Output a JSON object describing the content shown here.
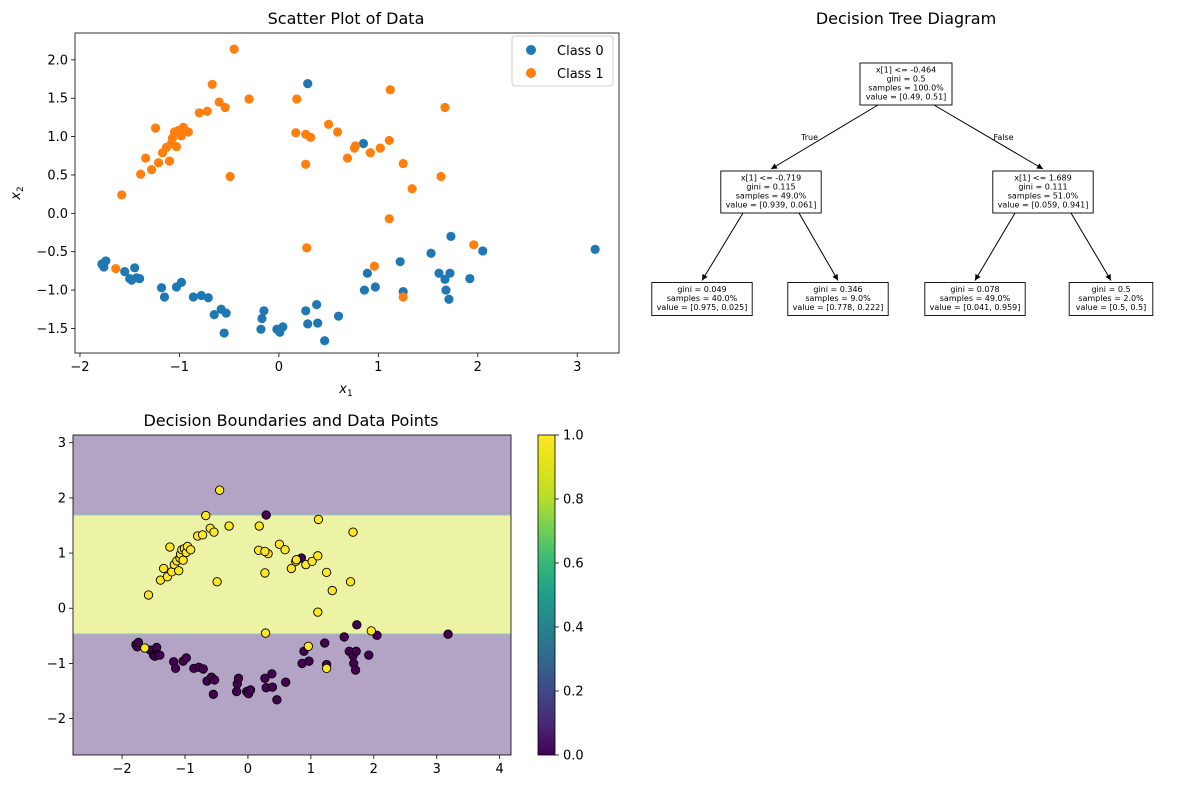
{
  "colors": {
    "class0": "#1f77b4",
    "class1": "#ff7f0e",
    "region0": "#b3a4c6",
    "region1": "#edf3a5",
    "edge_dark": "#440154",
    "edge_light": "#fde725"
  },
  "chart_data": [
    {
      "type": "scatter",
      "title": "Scatter Plot of Data",
      "xlabel": "x",
      "xlabel_sub": "1",
      "ylabel": "x",
      "ylabel_sub": "2",
      "xlim": [
        -2.05,
        3.42
      ],
      "ylim": [
        -1.82,
        2.35
      ],
      "xticks": [
        -2,
        -1,
        0,
        1,
        2,
        3
      ],
      "xtick_labels": [
        "−2",
        "−1",
        "0",
        "1",
        "2",
        "3"
      ],
      "yticks": [
        -1.5,
        -1.0,
        -0.5,
        0.0,
        0.5,
        1.0,
        1.5,
        2.0
      ],
      "ytick_labels": [
        "−1.5",
        "−1.0",
        "−0.5",
        "0.0",
        "0.5",
        "1.0",
        "1.5",
        "2.0"
      ],
      "grid": false,
      "legend_position": "top-right",
      "series": [
        {
          "name": "Class 0",
          "x": [
            -1.78,
            -1.76,
            -1.74,
            -1.55,
            -1.5,
            -1.48,
            -1.45,
            -1.43,
            -1.4,
            -1.18,
            -1.15,
            -1.03,
            -0.98,
            -0.86,
            -0.78,
            -0.71,
            -0.65,
            -0.58,
            -0.55,
            -0.53,
            -0.18,
            -0.17,
            -0.15,
            -0.02,
            0.01,
            0.04,
            0.27,
            0.29,
            0.38,
            0.39,
            0.46,
            0.6,
            0.86,
            0.89,
            0.97,
            1.22,
            1.25,
            1.53,
            1.61,
            1.67,
            1.68,
            1.71,
            1.72,
            1.73,
            1.92,
            2.05,
            3.18,
            0.29,
            0.85
          ],
          "y": [
            -0.66,
            -0.7,
            -0.62,
            -0.76,
            -0.85,
            -0.87,
            -0.71,
            -0.84,
            -0.85,
            -0.97,
            -1.09,
            -0.96,
            -0.9,
            -1.09,
            -1.07,
            -1.1,
            -1.32,
            -1.25,
            -1.56,
            -1.3,
            -1.51,
            -1.37,
            -1.27,
            -1.51,
            -1.55,
            -1.48,
            -1.27,
            -1.44,
            -1.19,
            -1.43,
            -1.66,
            -1.34,
            -1.0,
            -0.78,
            -0.96,
            -0.63,
            -1.02,
            -0.52,
            -0.78,
            -0.86,
            -1.0,
            -1.12,
            -0.78,
            -0.3,
            -0.85,
            -0.49,
            -0.47,
            1.69,
            0.91
          ]
        },
        {
          "name": "Class 1",
          "x": [
            -1.64,
            -1.58,
            -1.39,
            -1.34,
            -1.28,
            -1.24,
            -1.21,
            -1.17,
            -1.13,
            -1.1,
            -1.08,
            -1.07,
            -1.05,
            -1.03,
            -1.01,
            -0.98,
            -0.96,
            -0.91,
            -0.8,
            -0.72,
            -0.67,
            -0.6,
            -0.54,
            -0.49,
            -0.45,
            -0.3,
            0.17,
            0.27,
            0.28,
            0.32,
            0.5,
            0.59,
            0.69,
            0.76,
            0.92,
            1.02,
            1.11,
            1.12,
            1.25,
            1.34,
            1.63,
            1.67,
            1.96,
            0.18,
            0.77,
            1.11,
            0.96,
            1.25,
            0.27
          ],
          "y": [
            -0.72,
            0.24,
            0.51,
            0.72,
            0.57,
            1.11,
            0.66,
            0.79,
            0.86,
            0.68,
            0.91,
            0.98,
            1.06,
            0.87,
            1.08,
            1.01,
            1.12,
            1.06,
            1.31,
            1.33,
            1.68,
            1.45,
            1.38,
            0.48,
            2.14,
            1.49,
            1.05,
            0.64,
            -0.45,
            0.99,
            1.16,
            1.06,
            0.72,
            0.85,
            0.79,
            0.85,
            -0.07,
            1.61,
            0.65,
            0.32,
            0.48,
            1.38,
            -0.41,
            1.49,
            0.88,
            0.95,
            -0.69,
            -1.09,
            1.03
          ]
        }
      ],
      "legend": [
        "Class 0",
        "Class 1"
      ]
    },
    {
      "type": "tree",
      "title": "Decision Tree Diagram",
      "nodes": [
        {
          "id": "root",
          "lines": [
            "x[1] <= -0.464",
            "gini = 0.5",
            "samples = 100.0%",
            "value = [0.49, 0.51]"
          ]
        },
        {
          "id": "left",
          "lines": [
            "x[1] <= -0.719",
            "gini = 0.115",
            "samples = 49.0%",
            "value = [0.939, 0.061]"
          ]
        },
        {
          "id": "right",
          "lines": [
            "x[1] <= 1.689",
            "gini = 0.111",
            "samples = 51.0%",
            "value = [0.059, 0.941]"
          ]
        },
        {
          "id": "leaf1",
          "lines": [
            "gini = 0.049",
            "samples = 40.0%",
            "value = [0.975, 0.025]"
          ]
        },
        {
          "id": "leaf2",
          "lines": [
            "gini = 0.346",
            "samples = 9.0%",
            "value = [0.778, 0.222]"
          ]
        },
        {
          "id": "leaf3",
          "lines": [
            "gini = 0.078",
            "samples = 49.0%",
            "value = [0.041, 0.959]"
          ]
        },
        {
          "id": "leaf4",
          "lines": [
            "gini = 0.5",
            "samples = 2.0%",
            "value = [0.5, 0.5]"
          ]
        }
      ],
      "edges": [
        {
          "from": "root",
          "to": "left",
          "label": "True"
        },
        {
          "from": "root",
          "to": "right",
          "label": "False"
        },
        {
          "from": "left",
          "to": "leaf1",
          "label": ""
        },
        {
          "from": "left",
          "to": "leaf2",
          "label": ""
        },
        {
          "from": "right",
          "to": "leaf3",
          "label": ""
        },
        {
          "from": "right",
          "to": "leaf4",
          "label": ""
        }
      ]
    },
    {
      "type": "scatter",
      "title": "Decision Boundaries and Data Points",
      "xlim": [
        -2.78,
        4.18
      ],
      "ylim": [
        -2.66,
        3.14
      ],
      "xticks": [
        -2,
        -1,
        0,
        1,
        2,
        3,
        4
      ],
      "xtick_labels": [
        "−2",
        "−1",
        "0",
        "1",
        "2",
        "3",
        "4"
      ],
      "yticks": [
        -2,
        -1,
        0,
        1,
        2,
        3
      ],
      "ytick_labels": [
        "−2",
        "−1",
        "0",
        "1",
        "2",
        "3"
      ],
      "regions": [
        {
          "y_from": -2.66,
          "y_to": -0.464,
          "class": 0
        },
        {
          "y_from": -0.464,
          "y_to": 1.689,
          "class": 1
        },
        {
          "y_from": 1.689,
          "y_to": 3.14,
          "class": 0
        }
      ],
      "colorbar": {
        "ticks": [
          0.0,
          0.2,
          0.4,
          0.6,
          0.8,
          1.0
        ],
        "tick_labels": [
          "0.0",
          "0.2",
          "0.4",
          "0.6",
          "0.8",
          "1.0"
        ]
      }
    }
  ]
}
